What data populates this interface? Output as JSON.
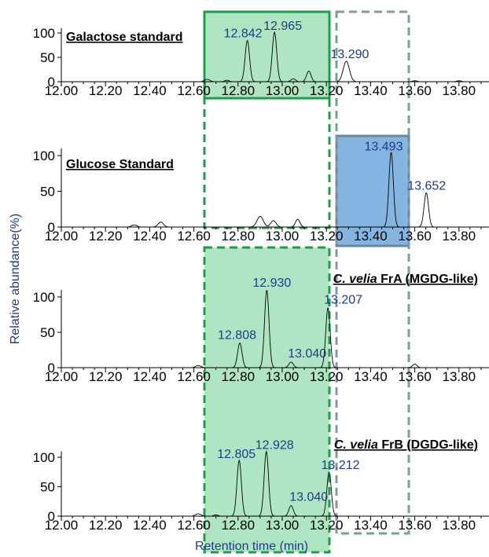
{
  "chart_data": {
    "type": "line",
    "xlabel": "Retention time (min)",
    "ylabel": "Relative abundance(%)",
    "x_ticks": [
      "12.00",
      "12.20",
      "12.40",
      "12.60",
      "12.80",
      "13.00",
      "13.20",
      "13.40",
      "13.60",
      "13.80"
    ],
    "y_ticks": [
      "0",
      "50",
      "100"
    ],
    "xlim": [
      12.0,
      14.0
    ],
    "ylim": [
      0,
      110
    ],
    "panels": [
      {
        "title": "Galactose standard",
        "title_italic": "",
        "peaks": [
          {
            "x": 12.842,
            "y": 85,
            "w": 0.01,
            "label": "12.842"
          },
          {
            "x": 12.965,
            "y": 102,
            "w": 0.01,
            "label": "12.965"
          },
          {
            "x": 13.12,
            "y": 22,
            "w": 0.01,
            "label": ""
          },
          {
            "x": 13.29,
            "y": 42,
            "w": 0.014,
            "label": "13.290"
          },
          {
            "x": 12.66,
            "y": 5,
            "w": 0.012,
            "label": ""
          },
          {
            "x": 12.75,
            "y": 3,
            "w": 0.01,
            "label": ""
          },
          {
            "x": 13.05,
            "y": 6,
            "w": 0.01,
            "label": ""
          },
          {
            "x": 13.6,
            "y": 2,
            "w": 0.01,
            "label": ""
          },
          {
            "x": 13.8,
            "y": 2,
            "w": 0.01,
            "label": ""
          },
          {
            "x": 13.98,
            "y": 3,
            "w": 0.01,
            "label": ""
          }
        ]
      },
      {
        "title": "Glucose Standard",
        "title_italic": "",
        "peaks": [
          {
            "x": 13.493,
            "y": 105,
            "w": 0.01,
            "label": "13.493"
          },
          {
            "x": 13.652,
            "y": 48,
            "w": 0.01,
            "label": "13.652"
          },
          {
            "x": 12.33,
            "y": 3,
            "w": 0.012,
            "label": ""
          },
          {
            "x": 12.45,
            "y": 7,
            "w": 0.012,
            "label": ""
          },
          {
            "x": 12.9,
            "y": 15,
            "w": 0.014,
            "label": ""
          },
          {
            "x": 12.96,
            "y": 9,
            "w": 0.012,
            "label": ""
          },
          {
            "x": 13.07,
            "y": 11,
            "w": 0.01,
            "label": ""
          }
        ]
      },
      {
        "title": "FrA (MGDG-like)",
        "title_italic": "C. velia",
        "peaks": [
          {
            "x": 12.808,
            "y": 35,
            "w": 0.01,
            "label": "12.808"
          },
          {
            "x": 12.93,
            "y": 110,
            "w": 0.01,
            "label": "12.930"
          },
          {
            "x": 13.04,
            "y": 8,
            "w": 0.01,
            "label": "13.040"
          },
          {
            "x": 13.207,
            "y": 85,
            "w": 0.01,
            "label": "13.207"
          },
          {
            "x": 12.62,
            "y": 3,
            "w": 0.012,
            "label": ""
          },
          {
            "x": 13.6,
            "y": 5,
            "w": 0.01,
            "label": ""
          }
        ]
      },
      {
        "title": "FrB (DGDG-like)",
        "title_italic": "C. velia",
        "peaks": [
          {
            "x": 12.805,
            "y": 95,
            "w": 0.01,
            "label": "12.805"
          },
          {
            "x": 12.928,
            "y": 110,
            "w": 0.01,
            "label": "12.928"
          },
          {
            "x": 13.04,
            "y": 18,
            "w": 0.01,
            "label": "13.040"
          },
          {
            "x": 13.212,
            "y": 75,
            "w": 0.01,
            "label": "13.212"
          },
          {
            "x": 12.62,
            "y": 4,
            "w": 0.012,
            "label": ""
          },
          {
            "x": 12.7,
            "y": 2,
            "w": 0.01,
            "label": ""
          }
        ]
      }
    ],
    "highlight_colors": {
      "green_fill": "#6fcf92",
      "green_border": "#1f9e4a",
      "blue_fill": "#5b9bd5",
      "blue_border": "#6e8796",
      "gray_dash": "#7f98a4",
      "peak_label": "#1f3a8a"
    }
  }
}
